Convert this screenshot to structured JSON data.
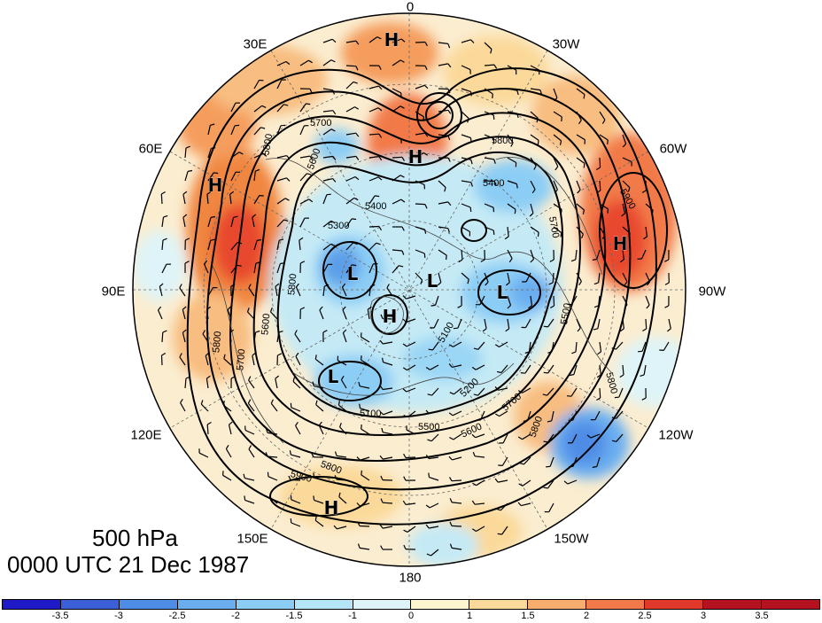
{
  "title": {
    "level": "500 hPa",
    "time": "0000 UTC 21 Dec 1987"
  },
  "longitude_labels": [
    {
      "text": "0",
      "lon": 0
    },
    {
      "text": "30W",
      "lon": -30
    },
    {
      "text": "60W",
      "lon": -60
    },
    {
      "text": "90W",
      "lon": -90
    },
    {
      "text": "120W",
      "lon": -120
    },
    {
      "text": "150W",
      "lon": -150
    },
    {
      "text": "180",
      "lon": 180
    },
    {
      "text": "150E",
      "lon": 150
    },
    {
      "text": "120E",
      "lon": 120
    },
    {
      "text": "90E",
      "lon": 90
    },
    {
      "text": "60E",
      "lon": 60
    },
    {
      "text": "30E",
      "lon": 30
    }
  ],
  "pressure_centers": [
    {
      "type": "H"
    },
    {
      "type": "H"
    },
    {
      "type": "H"
    },
    {
      "type": "H"
    },
    {
      "type": "H"
    },
    {
      "type": "H"
    },
    {
      "type": "L"
    },
    {
      "type": "L"
    },
    {
      "type": "L"
    },
    {
      "type": "L"
    }
  ],
  "contour_labels": [
    "5700",
    "5800",
    "5600",
    "5400",
    "5800",
    "5300",
    "5400",
    "5700",
    "5900",
    "5800",
    "5600",
    "5700",
    "5800",
    "5100",
    "5200",
    "5100",
    "5500",
    "5600",
    "5700",
    "5800",
    "5800",
    "5900",
    "5800",
    "5500"
  ],
  "colorbar": {
    "ticks": [
      "-3.5",
      "-3",
      "-2.5",
      "-2",
      "-1.5",
      "-1",
      "0",
      "1",
      "1.5",
      "2",
      "2.5",
      "3",
      "3.5"
    ],
    "colors": [
      "#1f1ac8",
      "#3a5fd8",
      "#4f8ce6",
      "#6aaef0",
      "#8ccdf5",
      "#b5e6f8",
      "#dff4f8",
      "#fdf5d0",
      "#fbd99a",
      "#f7ad6e",
      "#f27a4a",
      "#e0382b",
      "#b4121e"
    ]
  },
  "colors": {
    "background_field": "#fbedd0",
    "contour": "#000000"
  }
}
